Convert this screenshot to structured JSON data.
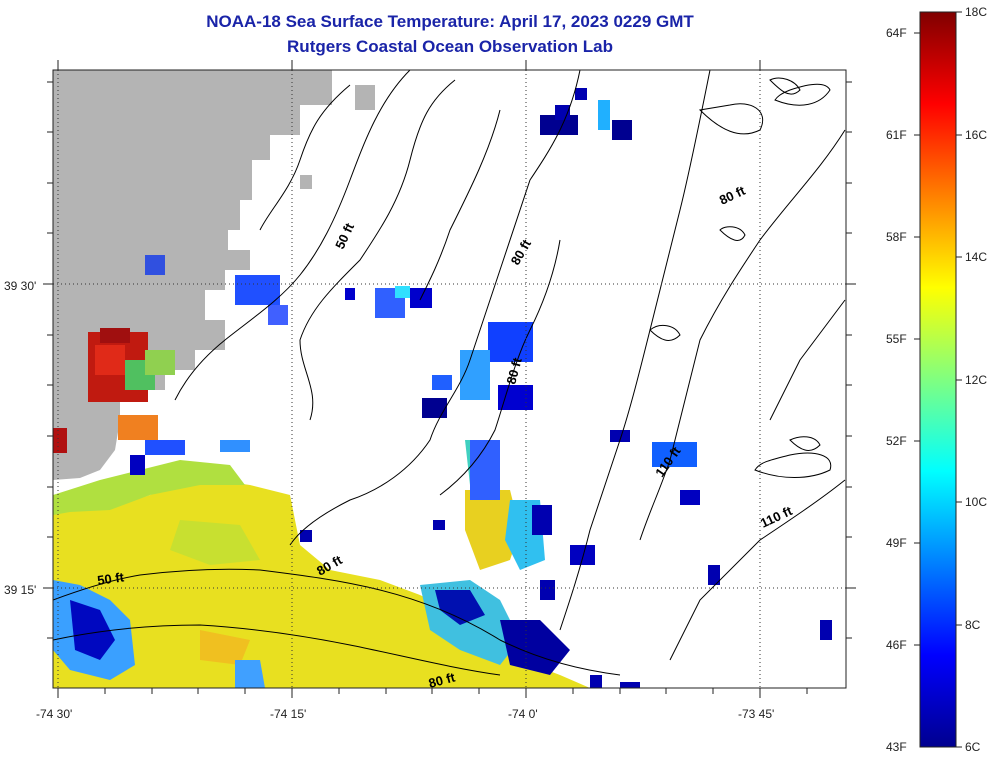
{
  "title": "NOAA-18 Sea Surface Temperature:  April 17, 2023 0229 GMT",
  "subtitle": "Rutgers Coastal Ocean Observation Lab",
  "map": {
    "lon_labels": [
      "-74 30'",
      "-74 15'",
      "-74 0'",
      "-73 45'"
    ],
    "lat_labels": [
      "39 30'",
      "39 15'"
    ],
    "contour_labels": [
      "50 ft",
      "50 ft",
      "80 ft",
      "80 ft",
      "80 ft",
      "80 ft",
      "80 ft",
      "110 ft",
      "110 ft"
    ],
    "colors": {
      "land": "#b4b4b4",
      "cloud": "#ffffff",
      "contour": "#000000"
    }
  },
  "colorbar": {
    "celsius_labels": [
      "18C",
      "16C",
      "14C",
      "12C",
      "10C",
      "8C",
      "6C"
    ],
    "fahrenheit_labels": [
      "64F",
      "61F",
      "58F",
      "55F",
      "52F",
      "49F",
      "46F",
      "43F"
    ],
    "min_c": 6,
    "max_c": 18,
    "colors": [
      "#00008f",
      "#0000ff",
      "#0080ff",
      "#00ffff",
      "#80ff80",
      "#ffff00",
      "#ff8000",
      "#ff0000",
      "#800000"
    ]
  }
}
